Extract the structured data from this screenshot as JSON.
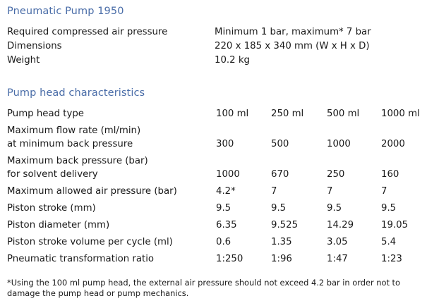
{
  "product": {
    "title": "Pneumatic Pump 1950"
  },
  "specs": [
    {
      "label": "Required compressed air pressure",
      "value": "Minimum 1 bar, maximum* 7 bar"
    },
    {
      "label": "Dimensions",
      "value": "220 x 185 x 340 mm (W x H x D)"
    },
    {
      "label": "Weight",
      "value": "10.2 kg"
    }
  ],
  "pump_head": {
    "title": "Pump head characteristics",
    "rows": [
      {
        "label_lines": [
          "Pump head type"
        ],
        "values": [
          "100 ml",
          "250 ml",
          "500 ml",
          "1000 ml"
        ]
      },
      {
        "label_lines": [
          "Maximum flow rate (ml/min)",
          "at minimum back pressure"
        ],
        "values": [
          "300",
          "500",
          "1000",
          "2000"
        ]
      },
      {
        "label_lines": [
          "Maximum back pressure (bar)",
          "for solvent delivery"
        ],
        "values": [
          "1000",
          "670",
          "250",
          "160"
        ]
      },
      {
        "label_lines": [
          "Maximum allowed air pressure (bar)"
        ],
        "values": [
          "4.2*",
          "7",
          "7",
          "7"
        ]
      },
      {
        "label_lines": [
          "Piston stroke (mm)"
        ],
        "values": [
          "9.5",
          "9.5",
          "9.5",
          "9.5"
        ]
      },
      {
        "label_lines": [
          "Piston diameter (mm)"
        ],
        "values": [
          "6.35",
          "9.525",
          "14.29",
          "19.05"
        ]
      },
      {
        "label_lines": [
          "Piston stroke volume per cycle (ml)"
        ],
        "values": [
          "0.6",
          "1.35",
          "3.05",
          "5.4"
        ]
      },
      {
        "label_lines": [
          "Pneumatic transformation ratio"
        ],
        "values": [
          "1:250",
          "1:96",
          "1:47",
          "1:23"
        ]
      }
    ]
  },
  "footnote": "*Using the 100 ml pump head, the external air pressure should not exceed 4.2 bar in order not to damage the pump head or pump mechanics."
}
